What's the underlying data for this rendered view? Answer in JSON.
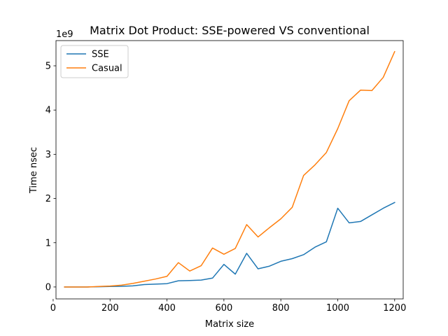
{
  "chart_data": {
    "type": "line",
    "title": "Matrix Dot Product: SSE-powered VS conventional",
    "xlabel": "Matrix size",
    "ylabel": "Time nsec",
    "y_offset_label": "1e9",
    "y_scale_factor": 1000000000,
    "xlim": [
      10,
      1230
    ],
    "ylim": [
      -0.27,
      5.57
    ],
    "x_ticks": [
      0,
      200,
      400,
      600,
      800,
      1000,
      1200
    ],
    "x_tick_labels": [
      "0",
      "200",
      "400",
      "600",
      "800",
      "1000",
      "1200"
    ],
    "y_ticks": [
      0,
      1,
      2,
      3,
      4,
      5
    ],
    "y_tick_labels": [
      "0",
      "1",
      "2",
      "3",
      "4",
      "5"
    ],
    "grid": false,
    "legend_position": "upper-left",
    "x": [
      40,
      80,
      120,
      160,
      200,
      240,
      280,
      320,
      360,
      400,
      440,
      480,
      520,
      560,
      600,
      640,
      680,
      720,
      760,
      800,
      840,
      880,
      920,
      960,
      1000,
      1040,
      1080,
      1120,
      1160,
      1200
    ],
    "series": [
      {
        "name": "SSE",
        "color": "#1f77b4",
        "values": [
          0.0,
          0.0,
          0.0,
          0.005,
          0.01,
          0.015,
          0.025,
          0.055,
          0.065,
          0.075,
          0.14,
          0.145,
          0.155,
          0.2,
          0.51,
          0.29,
          0.76,
          0.41,
          0.47,
          0.58,
          0.64,
          0.73,
          0.9,
          1.02,
          1.78,
          1.45,
          1.48,
          1.63,
          1.78,
          1.91
        ]
      },
      {
        "name": "Casual",
        "color": "#ff7f0e",
        "values": [
          0.0,
          0.0,
          0.0,
          0.01,
          0.02,
          0.04,
          0.08,
          0.13,
          0.18,
          0.24,
          0.55,
          0.36,
          0.48,
          0.88,
          0.74,
          0.87,
          1.41,
          1.13,
          1.34,
          1.54,
          1.8,
          2.52,
          2.76,
          3.04,
          3.58,
          4.21,
          4.45,
          4.44,
          4.74,
          5.32
        ]
      }
    ]
  }
}
